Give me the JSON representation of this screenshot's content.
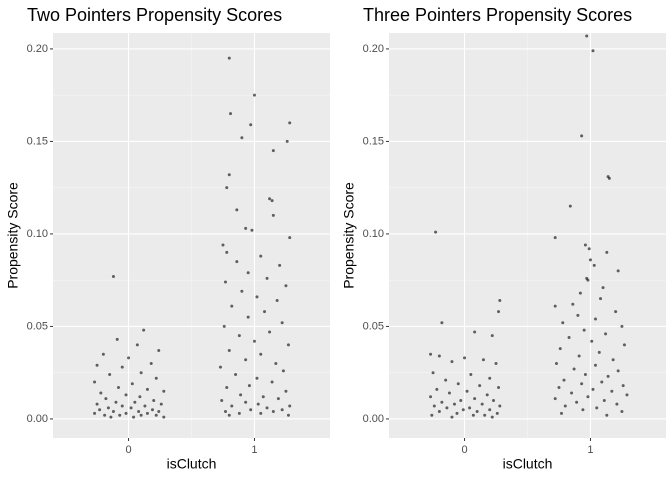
{
  "chart_data": [
    {
      "type": "scatter",
      "title": "Two Pointers Propensity Scores",
      "x_label": "isClutch",
      "y_label": "Propensity Score",
      "xlim": [
        -0.6,
        1.6
      ],
      "xticks": [
        0,
        1
      ],
      "x_minor_ticks": [
        0.5
      ],
      "ylim": [
        -0.0103,
        0.2086
      ],
      "yticks": [
        {
          "value": 0,
          "label": "0.00"
        },
        {
          "value": 0.05,
          "label": "0.05"
        },
        {
          "value": 0.1,
          "label": "0.10"
        },
        {
          "value": 0.15,
          "label": "0.15"
        },
        {
          "value": 0.2,
          "label": "0.20"
        }
      ],
      "y_minor_ticks": [
        0.025,
        0.075,
        0.125,
        0.175
      ],
      "grid": true,
      "series": [
        {
          "color": "#000000",
          "opacity": 0.6,
          "x": [
            -0.12,
            0.12,
            -0.09,
            0.07,
            0.24,
            -0.2,
            0.0,
            -0.25,
            0.18,
            -0.05,
            0.1,
            -0.15,
            0.22,
            -0.27,
            0.03,
            -0.08,
            0.15,
            0.28,
            -0.22,
            -0.02,
            0.09,
            -0.18,
            0.2,
            -0.1,
            0.05,
            -0.25,
            0.26,
            0.13,
            -0.05,
            -0.16,
            0.02,
            0.19,
            -0.23,
            0.08,
            -0.12,
            0.24,
            -0.02,
            0.15,
            -0.27,
            0.1,
            -0.07,
            0.22,
            -0.19,
            0.04,
            0.28,
            -0.14,
            0.8,
            1.0,
            0.81,
            1.28,
            0.97,
            0.9,
            1.26,
            1.15,
            0.8,
            0.78,
            0.86,
            1.12,
            1.14,
            0.93,
            1.15,
            0.98,
            0.75,
            1.28,
            0.78,
            1.05,
            0.86,
            1.2,
            0.95,
            1.1,
            0.77,
            1.25,
            0.9,
            1.02,
            1.18,
            0.82,
            1.08,
            0.95,
            1.22,
            0.76,
            1.12,
            0.88,
            1.0,
            1.27,
            0.8,
            1.05,
            0.93,
            1.17,
            0.73,
            1.23,
            0.85,
            1.02,
            1.14,
            0.96,
            0.78,
            1.25,
            0.89,
            1.07,
            1.19,
            0.74,
            0.93,
            1.03,
            1.28,
            0.82,
            1.1,
            0.97,
            1.22,
            0.77,
            1.15,
            0.88,
            1.05,
            1.27,
            0.8
          ],
          "values": [
            0.077,
            0.048,
            0.043,
            0.04,
            0.037,
            0.035,
            0.033,
            0.029,
            0.03,
            0.028,
            0.025,
            0.024,
            0.022,
            0.02,
            0.019,
            0.017,
            0.016,
            0.015,
            0.014,
            0.013,
            0.012,
            0.011,
            0.01,
            0.009,
            0.009,
            0.008,
            0.008,
            0.007,
            0.007,
            0.006,
            0.006,
            0.005,
            0.005,
            0.004,
            0.004,
            0.004,
            0.003,
            0.003,
            0.003,
            0.002,
            0.002,
            0.002,
            0.002,
            0.001,
            0.001,
            0.001,
            0.195,
            0.175,
            0.165,
            0.16,
            0.159,
            0.152,
            0.15,
            0.145,
            0.132,
            0.125,
            0.113,
            0.119,
            0.118,
            0.103,
            0.11,
            0.102,
            0.094,
            0.098,
            0.09,
            0.088,
            0.085,
            0.083,
            0.079,
            0.076,
            0.074,
            0.072,
            0.069,
            0.066,
            0.064,
            0.061,
            0.058,
            0.055,
            0.052,
            0.05,
            0.047,
            0.045,
            0.042,
            0.04,
            0.037,
            0.035,
            0.032,
            0.03,
            0.028,
            0.026,
            0.024,
            0.022,
            0.02,
            0.018,
            0.017,
            0.015,
            0.013,
            0.012,
            0.011,
            0.01,
            0.009,
            0.008,
            0.007,
            0.007,
            0.006,
            0.005,
            0.005,
            0.004,
            0.004,
            0.003,
            0.003,
            0.002,
            0.002
          ]
        }
      ]
    },
    {
      "type": "scatter",
      "title": "Three Pointers Propensity Scores",
      "x_label": "isClutch",
      "y_label": "Propensity Score",
      "xlim": [
        -0.6,
        1.6
      ],
      "xticks": [
        0,
        1
      ],
      "x_minor_ticks": [
        0.5
      ],
      "ylim": [
        -0.0103,
        0.2086
      ],
      "yticks": [
        {
          "value": 0,
          "label": "0.00"
        },
        {
          "value": 0.05,
          "label": "0.05"
        },
        {
          "value": 0.1,
          "label": "0.10"
        },
        {
          "value": 0.15,
          "label": "0.15"
        },
        {
          "value": 0.2,
          "label": "0.20"
        }
      ],
      "y_minor_ticks": [
        0.025,
        0.075,
        0.125,
        0.175
      ],
      "grid": true,
      "series": [
        {
          "color": "#000000",
          "opacity": 0.6,
          "x": [
            -0.23,
            0.28,
            -0.18,
            0.27,
            0.08,
            0.22,
            -0.27,
            -0.2,
            0.0,
            0.15,
            -0.1,
            0.25,
            -0.25,
            0.05,
            0.2,
            -0.15,
            -0.05,
            0.12,
            0.27,
            -0.22,
            0.02,
            -0.12,
            0.18,
            -0.27,
            0.08,
            -0.03,
            0.23,
            -0.18,
            0.14,
            -0.08,
            0.28,
            -0.24,
            0.04,
            -0.14,
            0.2,
            -0.01,
            0.1,
            -0.2,
            0.26,
            -0.06,
            0.16,
            -0.26,
            0.07,
            -0.1,
            0.22,
            0.97,
            1.02,
            0.93,
            1.14,
            1.15,
            0.84,
            0.72,
            0.96,
            0.99,
            1.13,
            1.0,
            1.03,
            1.22,
            0.97,
            0.98,
            1.1,
            0.92,
            1.08,
            0.86,
            0.72,
            1.2,
            0.9,
            1.04,
            0.78,
            1.25,
            0.95,
            1.12,
            0.83,
            1.01,
            1.27,
            0.76,
            1.07,
            0.91,
            1.18,
            0.73,
            1.04,
            0.87,
            1.22,
            0.96,
            1.14,
            0.79,
            1.09,
            0.93,
            1.26,
            0.75,
            1.02,
            1.17,
            0.85,
            1.29,
            0.98,
            0.72,
            1.11,
            0.89,
            1.21,
            0.8,
            1.05,
            0.94,
            1.25,
            0.77,
            1.13
          ],
          "values": [
            0.101,
            0.064,
            0.052,
            0.058,
            0.047,
            0.045,
            0.035,
            0.034,
            0.033,
            0.032,
            0.031,
            0.03,
            0.025,
            0.024,
            0.022,
            0.021,
            0.019,
            0.018,
            0.017,
            0.016,
            0.015,
            0.014,
            0.013,
            0.012,
            0.011,
            0.01,
            0.01,
            0.009,
            0.008,
            0.008,
            0.007,
            0.007,
            0.006,
            0.006,
            0.005,
            0.005,
            0.004,
            0.004,
            0.003,
            0.003,
            0.002,
            0.002,
            0.002,
            0.001,
            0.001,
            0.207,
            0.199,
            0.153,
            0.131,
            0.13,
            0.115,
            0.098,
            0.094,
            0.092,
            0.09,
            0.086,
            0.083,
            0.08,
            0.076,
            0.075,
            0.071,
            0.068,
            0.065,
            0.062,
            0.061,
            0.058,
            0.056,
            0.054,
            0.052,
            0.05,
            0.048,
            0.046,
            0.044,
            0.042,
            0.04,
            0.038,
            0.036,
            0.034,
            0.032,
            0.03,
            0.029,
            0.027,
            0.026,
            0.024,
            0.023,
            0.021,
            0.02,
            0.019,
            0.018,
            0.017,
            0.016,
            0.015,
            0.014,
            0.013,
            0.012,
            0.011,
            0.01,
            0.009,
            0.008,
            0.007,
            0.006,
            0.005,
            0.004,
            0.003,
            0.002
          ]
        }
      ]
    }
  ]
}
